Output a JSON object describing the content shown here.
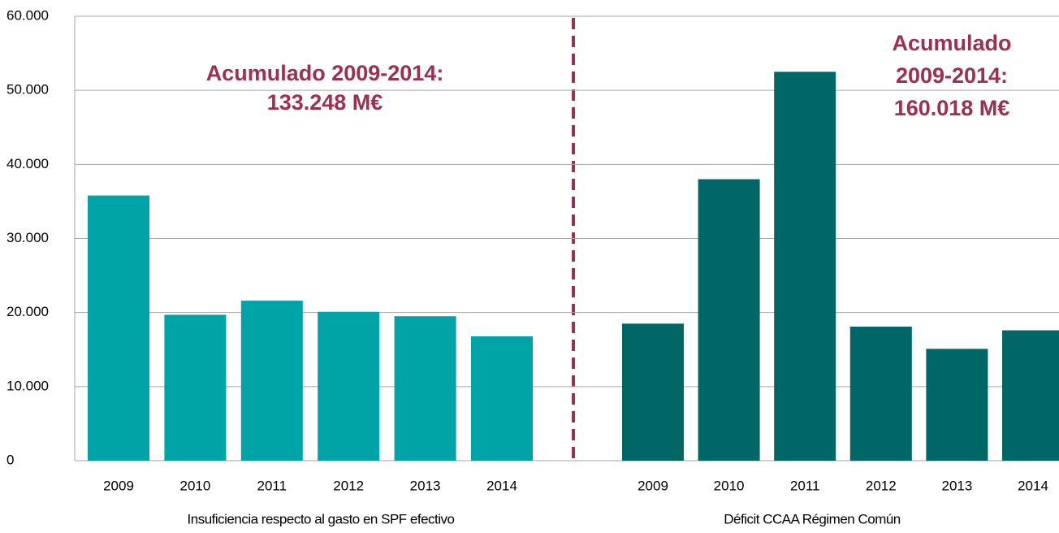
{
  "chart_data": [
    {
      "type": "bar",
      "xlabel": "Insuficiencia respecto al gasto en SPF efectivo",
      "annotations": [
        "Acumulado 2009-2014:",
        "133.248 M€"
      ],
      "categories": [
        "2009",
        "2010",
        "2011",
        "2012",
        "2013",
        "2014"
      ],
      "values": [
        35800,
        19700,
        21600,
        20100,
        19500,
        16800
      ],
      "color": "#00a3a6",
      "ylim": [
        0,
        60000
      ],
      "yticks": [
        0,
        {
          "value": 10000,
          "label": "10.000"
        },
        {
          "value": 20000,
          "label": "20.000"
        },
        {
          "value": 30000,
          "label": "30.000"
        },
        {
          "value": 40000,
          "label": "40.000"
        },
        {
          "value": 50000,
          "label": "50.000"
        },
        {
          "value": 60000,
          "label": "60.000"
        }
      ],
      "grid": true
    },
    {
      "type": "bar",
      "xlabel": "Déficit CCAA Régimen Común",
      "annotations": [
        "Acumulado",
        "2009-2014:",
        "160.018 M€"
      ],
      "categories": [
        "2009",
        "2010",
        "2011",
        "2012",
        "2013",
        "2014"
      ],
      "values": [
        18500,
        38000,
        52500,
        18100,
        15100,
        17600
      ],
      "color": "#006666"
    }
  ]
}
